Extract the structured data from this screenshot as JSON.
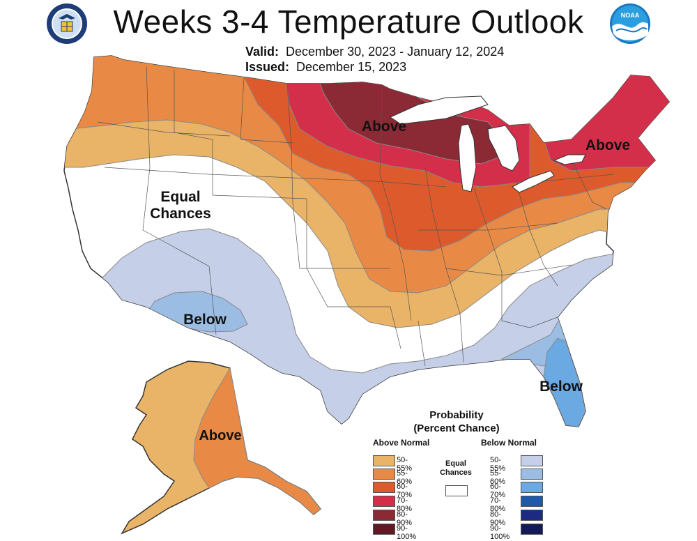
{
  "header": {
    "title": "Weeks 3-4 Temperature Outlook",
    "valid_label": "Valid:",
    "valid_value": "December 30, 2023 - January 12, 2024",
    "issued_label": "Issued:",
    "issued_value": "December 15, 2023"
  },
  "logos": {
    "left": "department-of-commerce-seal",
    "right": "noaa-logo",
    "noaa_text": "NOAA"
  },
  "map": {
    "labels": {
      "above_midwest": "Above",
      "above_northeast": "Above",
      "equal_line1": "Equal",
      "equal_line2": "Chances",
      "below_southwest": "Below",
      "below_florida": "Below",
      "above_alaska": "Above"
    }
  },
  "legend": {
    "title_line1": "Probability",
    "title_line2": "(Percent Chance)",
    "above_heading": "Above Normal",
    "below_heading": "Below Normal",
    "equal_line1": "Equal",
    "equal_line2": "Chances",
    "above": [
      {
        "label": "50-55%",
        "color": "#e9b468"
      },
      {
        "label": "55-60%",
        "color": "#e88a45"
      },
      {
        "label": "60-70%",
        "color": "#dd5a2c"
      },
      {
        "label": "70-80%",
        "color": "#d42f4a"
      },
      {
        "label": "80-90%",
        "color": "#8b2a34"
      },
      {
        "label": "90-100%",
        "color": "#5e1a24"
      }
    ],
    "below": [
      {
        "label": "50-55%",
        "color": "#c5cfe8"
      },
      {
        "label": "55-60%",
        "color": "#9bbde3"
      },
      {
        "label": "60-70%",
        "color": "#6aa9e2"
      },
      {
        "label": "70-80%",
        "color": "#1f5aa8"
      },
      {
        "label": "80-90%",
        "color": "#1c2a80"
      },
      {
        "label": "90-100%",
        "color": "#141a55"
      }
    ]
  }
}
